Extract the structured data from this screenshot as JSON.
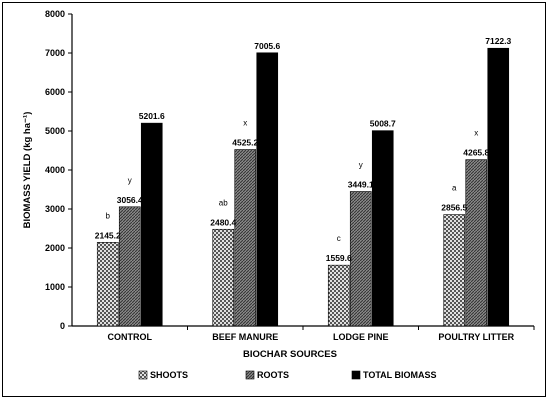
{
  "chart_data": {
    "type": "bar",
    "categories": [
      "CONTROL",
      "BEEF MANURE",
      "LODGE PINE",
      "POULTRY LITTER"
    ],
    "series": [
      {
        "name": "SHOOTS",
        "values": [
          2145.2,
          2480.4,
          1559.6,
          2856.5
        ],
        "letters": [
          "b",
          "ab",
          "c",
          "a"
        ],
        "color": "#9a9a9a",
        "pattern": "checker"
      },
      {
        "name": "ROOTS",
        "values": [
          3056.4,
          4525.2,
          3449.1,
          4265.8
        ],
        "letters": [
          "y",
          "x",
          "y",
          "x"
        ],
        "color": "#6e6e6e",
        "pattern": "hatch"
      },
      {
        "name": "TOTAL BIOMASS",
        "values": [
          5201.6,
          7005.6,
          5008.7,
          7122.3
        ],
        "letters": [
          "",
          "",
          "",
          ""
        ],
        "color": "#000000",
        "pattern": "solid"
      }
    ],
    "xlabel": "BIOCHAR SOURCES",
    "ylabel": "BIOMASS YIELD (kg ha⁻¹)",
    "ylim": [
      0,
      8000
    ],
    "yticks": [
      0,
      1000,
      2000,
      3000,
      4000,
      5000,
      6000,
      7000,
      8000
    ],
    "legend_position": "bottom",
    "grid": false
  }
}
